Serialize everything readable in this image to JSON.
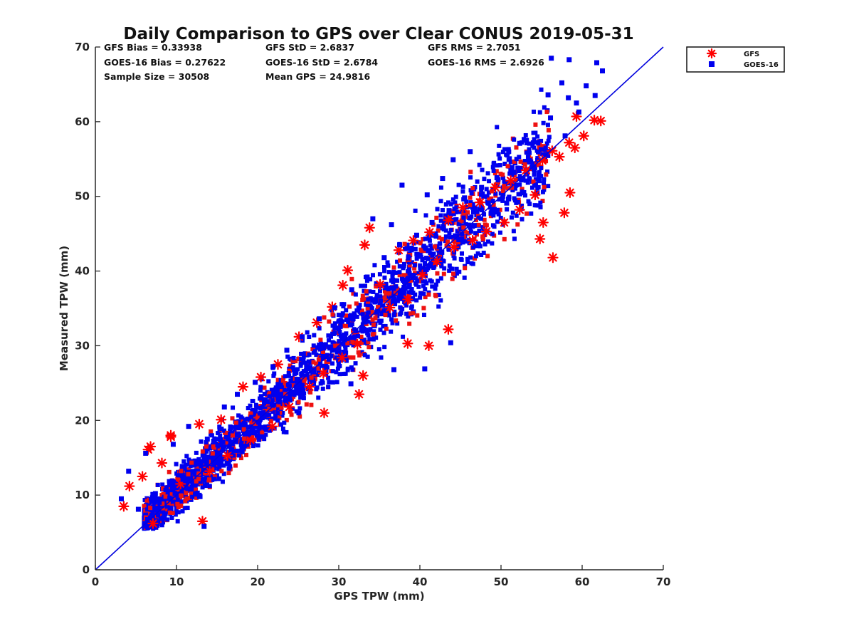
{
  "chart_data": {
    "type": "scatter",
    "title": "Daily Comparison to GPS over Clear CONUS 2019-05-31",
    "xlabel": "GPS TPW (mm)",
    "ylabel": "Measured TPW (mm)",
    "xlim": [
      0,
      70
    ],
    "ylim": [
      0,
      70
    ],
    "xticks": [
      "0",
      "10",
      "20",
      "30",
      "40",
      "50",
      "60",
      "70"
    ],
    "yticks": [
      "0",
      "10",
      "20",
      "30",
      "40",
      "50",
      "60",
      "70"
    ],
    "grid": false,
    "legend_position": "outside-top-right",
    "reference_line": {
      "name": "1:1 line",
      "x": [
        0,
        70
      ],
      "y": [
        0,
        70
      ],
      "color": "#0000dd"
    },
    "stats": [
      [
        "GFS Bias = 0.33938",
        "GFS StD = 2.6837",
        "GFS RMS = 2.7051"
      ],
      [
        "GOES-16 Bias = 0.27622",
        "GOES-16 StD = 2.6784",
        "GOES-16 RMS = 2.6926"
      ],
      [
        "Sample Size = 30508",
        "Mean GPS = 24.9816"
      ]
    ],
    "series": [
      {
        "name": "GFS",
        "marker": "asterisk",
        "color": "#ff0000",
        "x": [
          3.5,
          4.2,
          5.8,
          6.5,
          7.1,
          8.2,
          9.3,
          10.5,
          12.8,
          14.1,
          15.5,
          16.3,
          18.2,
          19.1,
          20.4,
          21.8,
          22.5,
          23.9,
          25.1,
          26.4,
          27.3,
          28.1,
          29.2,
          30.4,
          31.1,
          32.3,
          33.2,
          33.8,
          35.1,
          36.3,
          37.4,
          38.5,
          39.2,
          40.3,
          41.2,
          42.1,
          43.5,
          44.2,
          45.3,
          46.5,
          47.4,
          48.2,
          49.3,
          50.4,
          51.2,
          52.3,
          53.1,
          54.2,
          55.1,
          56.3,
          57.2,
          58.4,
          59.1,
          60.2,
          61.5,
          62.3,
          56.4,
          57.8,
          58.5,
          55.2,
          33.0,
          38.5,
          41.1,
          43.5,
          32.5,
          28.2,
          9.3,
          6.8,
          13.2,
          30.5,
          54.8,
          59.3
        ],
        "y": [
          8.5,
          11.2,
          12.5,
          16.1,
          6.2,
          14.3,
          17.8,
          11.5,
          19.5,
          13.2,
          20.1,
          15.3,
          24.5,
          17.4,
          25.8,
          19.2,
          27.5,
          21.8,
          31.2,
          24.5,
          33.1,
          26.3,
          35.2,
          28.4,
          40.1,
          30.2,
          43.5,
          45.8,
          38.2,
          35.1,
          42.8,
          36.2,
          44.1,
          39.5,
          45.2,
          41.3,
          46.8,
          43.2,
          48.5,
          44.1,
          49.2,
          45.3,
          51.2,
          46.5,
          52.1,
          48.2,
          53.5,
          50.2,
          54.8,
          56.1,
          55.3,
          57.2,
          56.5,
          58.1,
          60.2,
          60.1,
          41.8,
          47.8,
          50.5,
          46.5,
          26.0,
          30.3,
          30.0,
          32.2,
          23.5,
          21.0,
          18.0,
          16.5,
          6.5,
          38.1,
          44.3,
          60.7
        ]
      },
      {
        "name": "GOES-16",
        "marker": "square",
        "color": "#0000ee",
        "x": [
          3.2,
          4.1,
          5.3,
          6.2,
          7.4,
          8.5,
          9.6,
          10.8,
          11.5,
          12.9,
          13.8,
          14.6,
          15.9,
          16.8,
          17.5,
          18.9,
          19.7,
          20.6,
          21.9,
          22.7,
          23.6,
          24.8,
          25.5,
          26.9,
          27.6,
          28.8,
          29.5,
          30.7,
          31.6,
          32.8,
          33.5,
          34.7,
          35.6,
          36.8,
          37.5,
          38.7,
          39.6,
          40.8,
          41.5,
          42.7,
          43.6,
          44.8,
          45.5,
          46.7,
          47.6,
          48.8,
          49.5,
          50.7,
          51.6,
          52.8,
          53.5,
          54.7,
          55.6,
          56.2,
          57.5,
          58.4,
          59.3,
          60.5,
          61.8,
          62.5,
          56.1,
          58.3,
          59.6,
          57.9,
          61.6,
          55.8,
          52.3,
          46.2,
          42.8,
          44.1,
          40.9,
          37.8,
          36.5,
          34.2,
          43.8,
          40.6,
          36.8,
          13.4,
          31.5
        ],
        "y": [
          9.5,
          13.2,
          8.1,
          15.6,
          10.2,
          7.5,
          16.8,
          12.1,
          19.2,
          9.8,
          17.5,
          14.2,
          21.8,
          16.1,
          23.5,
          18.2,
          25.1,
          20.8,
          27.2,
          22.5,
          29.4,
          24.1,
          31.2,
          26.5,
          33.6,
          28.2,
          35.1,
          30.8,
          37.5,
          32.1,
          39.2,
          34.5,
          41.8,
          36.2,
          43.5,
          38.1,
          44.8,
          40.2,
          46.5,
          42.5,
          48.1,
          44.2,
          49.8,
          46.1,
          51.2,
          47.8,
          52.5,
          49.1,
          53.2,
          50.5,
          54.8,
          52.1,
          55.6,
          68.5,
          65.2,
          68.3,
          62.5,
          64.8,
          67.9,
          66.8,
          60.5,
          63.2,
          61.3,
          58.1,
          63.5,
          63.6,
          57.1,
          56.0,
          52.4,
          54.9,
          50.2,
          51.5,
          46.2,
          47.0,
          30.4,
          26.9,
          26.8,
          5.8,
          24.9
        ]
      }
    ]
  }
}
